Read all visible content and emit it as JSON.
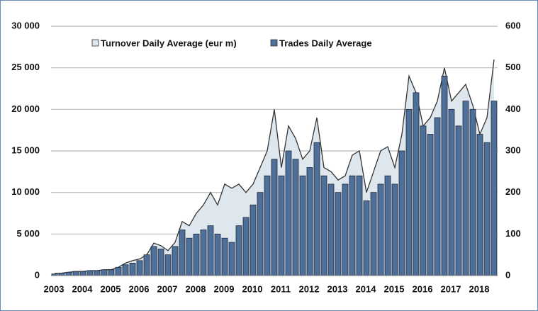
{
  "chart_data": {
    "type": "bar",
    "categories": [
      "2003",
      null,
      null,
      null,
      "2004",
      null,
      null,
      null,
      "2005",
      null,
      null,
      null,
      "2006",
      null,
      null,
      null,
      "2007",
      null,
      null,
      null,
      "2008",
      null,
      null,
      null,
      "2009",
      null,
      null,
      null,
      "2010",
      null,
      null,
      null,
      "2011",
      null,
      null,
      null,
      "2012",
      null,
      null,
      null,
      "2013",
      null,
      null,
      null,
      "2014",
      null,
      null,
      null,
      "2015",
      null,
      null,
      null,
      "2016",
      null,
      null,
      null,
      "2017",
      null,
      null,
      null,
      "2018",
      null,
      null
    ],
    "series": [
      {
        "name": "Turnover Daily Average (eur m)",
        "type": "area",
        "axis": "y2",
        "color": "#dfe7ee",
        "values": [
          5,
          6,
          8,
          10,
          10,
          12,
          12,
          14,
          14,
          20,
          30,
          36,
          40,
          50,
          78,
          72,
          60,
          80,
          130,
          120,
          150,
          170,
          200,
          170,
          220,
          210,
          220,
          200,
          220,
          260,
          300,
          400,
          260,
          360,
          330,
          280,
          300,
          380,
          260,
          250,
          230,
          240,
          290,
          300,
          200,
          250,
          300,
          310,
          260,
          340,
          480,
          440,
          360,
          380,
          420,
          500,
          420,
          440,
          460,
          410,
          340,
          380,
          520
        ]
      },
      {
        "name": "Trades Daily Average",
        "type": "bar",
        "color": "#4d6f99",
        "values": [
          200,
          300,
          400,
          500,
          500,
          600,
          600,
          700,
          700,
          1000,
          1300,
          1500,
          1800,
          2500,
          3500,
          3200,
          2500,
          3500,
          5500,
          4500,
          5000,
          5500,
          6000,
          5000,
          4500,
          4000,
          6000,
          7000,
          8500,
          10000,
          12000,
          14000,
          12000,
          15000,
          14000,
          12000,
          13000,
          16000,
          12000,
          11000,
          10000,
          11000,
          12000,
          12000,
          9000,
          10000,
          11000,
          12000,
          11000,
          15000,
          20000,
          22000,
          18000,
          17000,
          19000,
          24000,
          20000,
          18000,
          21000,
          20000,
          17000,
          16000,
          21000
        ]
      }
    ],
    "ylim": [
      0,
      30000
    ],
    "yticks": [
      0,
      {
        "value": 5000,
        "label": "5 000"
      },
      {
        "value": 10000,
        "label": "10 000"
      },
      {
        "value": 15000,
        "label": "15 000"
      },
      {
        "value": 20000,
        "label": "20 000"
      },
      {
        "value": 25000,
        "label": "25 000"
      },
      {
        "value": 30000,
        "label": "30 000"
      }
    ],
    "y2lim": [
      0,
      600
    ],
    "y2ticks": [
      0,
      100,
      200,
      300,
      400,
      500,
      600
    ],
    "grid": true
  }
}
